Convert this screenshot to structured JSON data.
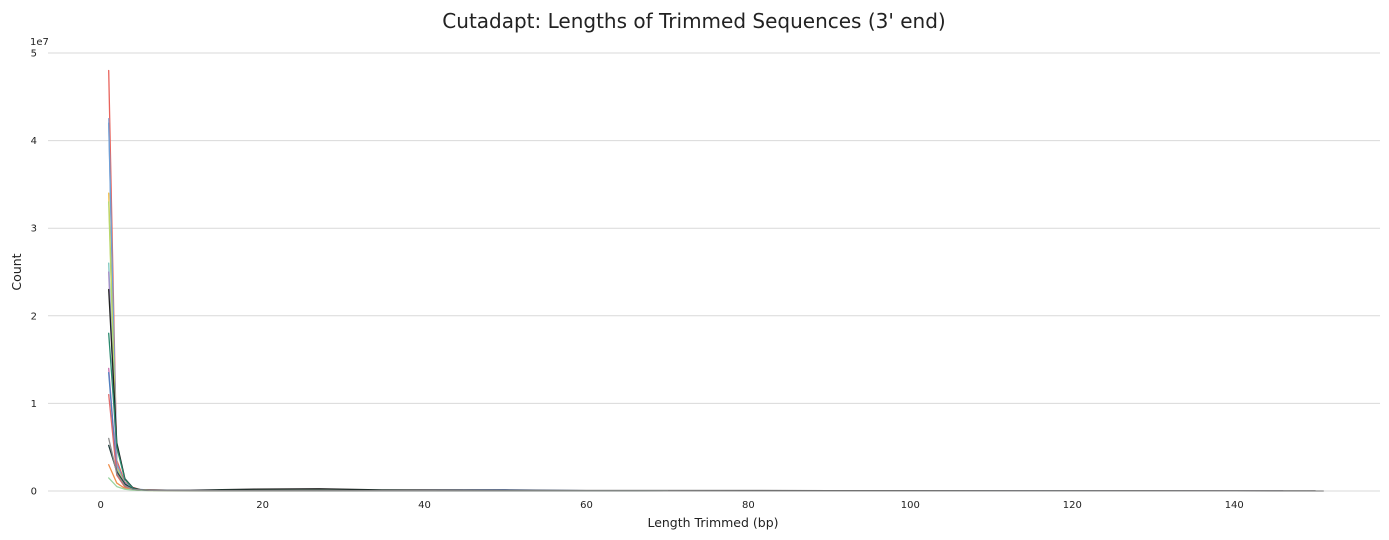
{
  "chart_data": {
    "type": "line",
    "title": "Cutadapt: Lengths of Trimmed Sequences (3' end)",
    "xlabel": "Length Trimmed (bp)",
    "ylabel": "Count",
    "y_multiplier_label": "1e7",
    "xlim": [
      -6.5,
      158
    ],
    "ylim": [
      0,
      50000000
    ],
    "x_ticks": [
      0,
      20,
      40,
      60,
      80,
      100,
      120,
      140
    ],
    "y_ticks": [
      0,
      10000000,
      20000000,
      30000000,
      40000000,
      50000000
    ],
    "y_tick_labels": [
      "0",
      "1",
      "2",
      "3",
      "4",
      "5"
    ],
    "grid": "horizontal",
    "legend": "none",
    "series": [
      {
        "color": "#e8635c",
        "x": [
          1,
          2,
          3,
          4,
          5,
          8,
          15,
          20,
          30,
          45,
          60,
          80,
          100,
          120,
          146
        ],
        "values": [
          48000000,
          3500000,
          1000000,
          400000,
          150000,
          90000,
          80000,
          70000,
          60000,
          50000,
          40000,
          30000,
          20000,
          15000,
          10000
        ]
      },
      {
        "color": "#8fa8d8",
        "x": [
          1,
          2,
          3,
          4,
          5,
          8,
          15,
          30,
          50,
          55,
          60
        ],
        "values": [
          42500000,
          2800000,
          900000,
          300000,
          120000,
          80000,
          70000,
          60000,
          150000,
          80000,
          40000
        ]
      },
      {
        "color": "#6f9fd6",
        "x": [
          1,
          2,
          3,
          4,
          6,
          10,
          30,
          60,
          90,
          140,
          146
        ],
        "values": [
          42000000,
          3100000,
          800000,
          250000,
          100000,
          70000,
          60000,
          40000,
          30000,
          15000,
          10000
        ]
      },
      {
        "color": "#f2c04a",
        "x": [
          1,
          2,
          3,
          4,
          6,
          15,
          40,
          70
        ],
        "values": [
          34000000,
          2700000,
          700000,
          200000,
          90000,
          70000,
          50000,
          30000
        ]
      },
      {
        "color": "#b8d86b",
        "x": [
          1,
          2,
          3,
          4,
          6,
          15,
          40,
          70
        ],
        "values": [
          33000000,
          2600000,
          650000,
          200000,
          90000,
          60000,
          40000,
          30000
        ]
      },
      {
        "color": "#7fc8c0",
        "x": [
          1,
          2,
          3,
          4,
          6,
          15,
          40,
          70
        ],
        "values": [
          26000000,
          2400000,
          600000,
          180000,
          80000,
          60000,
          40000,
          25000
        ]
      },
      {
        "color": "#a58ac8",
        "x": [
          1,
          2,
          3,
          4,
          6,
          15,
          40,
          70
        ],
        "values": [
          25000000,
          2300000,
          600000,
          180000,
          80000,
          60000,
          40000,
          25000
        ]
      },
      {
        "color": "#222222",
        "x": [
          1,
          2,
          3,
          4,
          5,
          10,
          19,
          27,
          35,
          60,
          90,
          120,
          150
        ],
        "values": [
          23000000,
          5500000,
          1400000,
          350000,
          120000,
          80000,
          200000,
          250000,
          120000,
          60000,
          40000,
          20000,
          10000
        ]
      },
      {
        "color": "#2a8a6e",
        "x": [
          1,
          2,
          3,
          4,
          5,
          10,
          20,
          40,
          70
        ],
        "values": [
          18000000,
          5000000,
          1300000,
          300000,
          110000,
          70000,
          60000,
          40000,
          25000
        ]
      },
      {
        "color": "#c96fb0",
        "x": [
          1,
          2,
          3,
          4,
          6,
          15,
          40,
          70
        ],
        "values": [
          14000000,
          2000000,
          500000,
          150000,
          70000,
          50000,
          35000,
          20000
        ]
      },
      {
        "color": "#4e7fbf",
        "x": [
          1,
          2,
          3,
          4,
          6,
          15,
          40,
          70
        ],
        "values": [
          13500000,
          1900000,
          500000,
          150000,
          70000,
          50000,
          35000,
          20000
        ]
      },
      {
        "color": "#e06b6b",
        "x": [
          1,
          2,
          3,
          4,
          6,
          15,
          40,
          70
        ],
        "values": [
          11000000,
          1800000,
          450000,
          140000,
          65000,
          50000,
          30000,
          20000
        ]
      },
      {
        "color": "#f08f4a",
        "x": [
          1,
          2,
          3,
          4,
          6,
          15,
          40,
          70
        ],
        "values": [
          3000000,
          900000,
          300000,
          120000,
          60000,
          45000,
          30000,
          20000
        ]
      },
      {
        "color": "#9bd4a0",
        "x": [
          1,
          2,
          3,
          4,
          6,
          15,
          40,
          70
        ],
        "values": [
          1500000,
          500000,
          200000,
          100000,
          50000,
          40000,
          30000,
          20000
        ]
      },
      {
        "color": "#1f3a3a",
        "x": [
          1,
          2,
          3,
          4,
          6,
          15,
          40,
          70
        ],
        "values": [
          5200000,
          2200000,
          800000,
          200000,
          70000,
          50000,
          30000,
          20000
        ]
      },
      {
        "color": "#8c8c8c",
        "x": [
          1,
          2,
          3,
          4,
          6,
          15,
          40,
          70,
          100,
          140,
          151
        ],
        "values": [
          6000000,
          2000000,
          600000,
          180000,
          70000,
          50000,
          30000,
          20000,
          15000,
          10000,
          5000
        ]
      }
    ]
  }
}
